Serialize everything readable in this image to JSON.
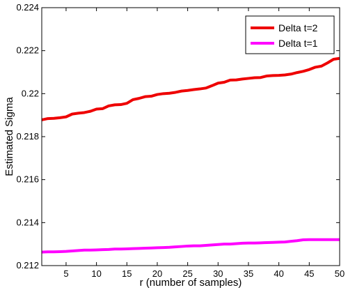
{
  "chart_data": {
    "type": "line",
    "title": "",
    "xlabel": "r  (number of samples)",
    "ylabel": "Estimated Sigma",
    "xlim": [
      1,
      50
    ],
    "ylim": [
      0.212,
      0.224
    ],
    "grid": false,
    "legend_position": "top-right",
    "x_ticks": [
      5,
      10,
      15,
      20,
      25,
      30,
      35,
      40,
      45,
      50
    ],
    "x_tick_labels": [
      "5",
      "10",
      "15",
      "20",
      "25",
      "30",
      "35",
      "40",
      "45",
      "50"
    ],
    "y_ticks": [
      0.212,
      0.214,
      0.216,
      0.218,
      0.22,
      0.222,
      0.224
    ],
    "y_tick_labels": [
      "0.212",
      "0.214",
      "0.216",
      "0.218",
      "0.22",
      "0.222",
      "0.224"
    ],
    "x": [
      1,
      2,
      3,
      4,
      5,
      6,
      7,
      8,
      9,
      10,
      11,
      12,
      13,
      14,
      15,
      16,
      17,
      18,
      19,
      20,
      21,
      22,
      23,
      24,
      25,
      26,
      27,
      28,
      29,
      30,
      31,
      32,
      33,
      34,
      35,
      36,
      37,
      38,
      39,
      40,
      41,
      42,
      43,
      44,
      45,
      46,
      47,
      48,
      49,
      50
    ],
    "series": [
      {
        "name": "Delta t=2",
        "color": "#ee0000",
        "values": [
          0.21878,
          0.21884,
          0.21885,
          0.21888,
          0.21892,
          0.21905,
          0.21909,
          0.21912,
          0.21918,
          0.21928,
          0.2193,
          0.21943,
          0.21948,
          0.21949,
          0.21955,
          0.21972,
          0.21978,
          0.21986,
          0.21988,
          0.21996,
          0.22,
          0.22002,
          0.22006,
          0.22012,
          0.22015,
          0.22019,
          0.22022,
          0.22026,
          0.22037,
          0.22049,
          0.22053,
          0.22063,
          0.22064,
          0.22068,
          0.22071,
          0.22074,
          0.22075,
          0.22082,
          0.22084,
          0.22085,
          0.22087,
          0.22091,
          0.22098,
          0.22104,
          0.22112,
          0.22123,
          0.22128,
          0.22143,
          0.2216,
          0.22164
        ]
      },
      {
        "name": "Delta t=1",
        "color": "#ff00ff",
        "values": [
          0.21263,
          0.21264,
          0.21264,
          0.21265,
          0.21266,
          0.21268,
          0.2127,
          0.21272,
          0.21272,
          0.21273,
          0.21274,
          0.21275,
          0.21277,
          0.21277,
          0.21278,
          0.21279,
          0.2128,
          0.21281,
          0.21282,
          0.21283,
          0.21284,
          0.21285,
          0.21287,
          0.21289,
          0.21291,
          0.21292,
          0.21292,
          0.21294,
          0.21296,
          0.21298,
          0.213,
          0.213,
          0.21302,
          0.21304,
          0.21305,
          0.21305,
          0.21306,
          0.21307,
          0.21308,
          0.21309,
          0.2131,
          0.21313,
          0.21316,
          0.2132,
          0.21321,
          0.21321,
          0.21321,
          0.21321,
          0.21321,
          0.21321
        ]
      }
    ]
  }
}
